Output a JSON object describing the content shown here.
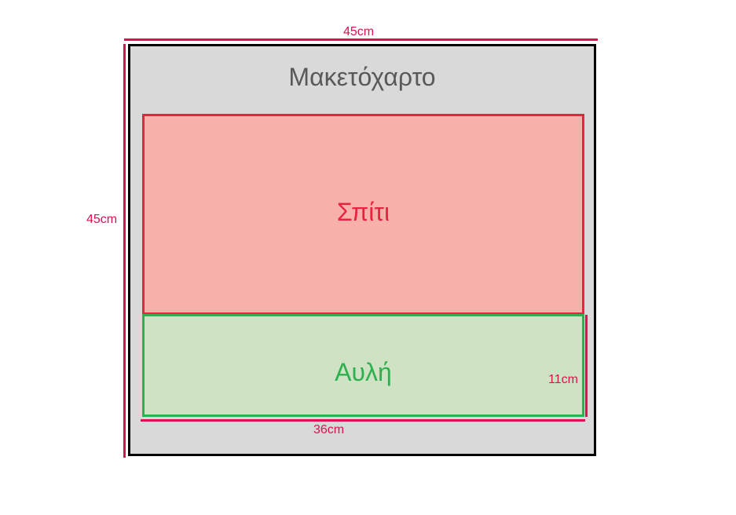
{
  "board": {
    "title": "Μακετόχαρτο",
    "width_label": "45cm",
    "height_label": "45cm"
  },
  "house": {
    "label": "Σπίτι"
  },
  "yard": {
    "label": "Αυλή",
    "width_label": "36cm",
    "height_label": "11cm"
  },
  "colors": {
    "board_fill": "#d9d9d9",
    "board_border": "#000000",
    "house_fill": "#f8b1aa",
    "house_border": "#e8223f",
    "yard_fill": "#d0e2c4",
    "yard_border": "#2db04f",
    "dimension": "#e0104f"
  }
}
